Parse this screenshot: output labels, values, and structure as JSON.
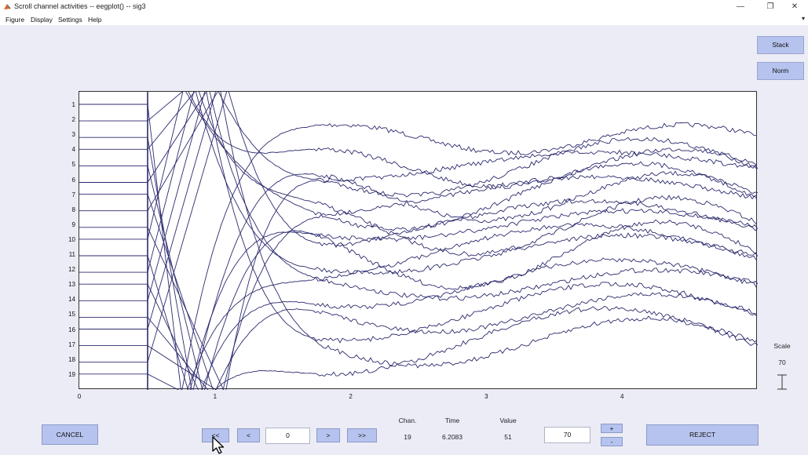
{
  "window": {
    "title": "Scroll channel activities -- eegplot() -- sig3",
    "controls": [
      "—",
      "❐",
      "✕"
    ]
  },
  "menu": [
    "Figure",
    "Display",
    "Settings",
    "Help"
  ],
  "side_buttons": {
    "stack": "Stack",
    "norm": "Norm"
  },
  "plot": {
    "channel_labels": [
      "1",
      "2",
      "3",
      "4",
      "5",
      "6",
      "7",
      "8",
      "9",
      "10",
      "11",
      "12",
      "13",
      "14",
      "15",
      "16",
      "17",
      "18",
      "19"
    ],
    "time_ticks": [
      "0",
      "1",
      "2",
      "3",
      "4"
    ],
    "line_color": "#2b2a6e"
  },
  "scale": {
    "label": "Scale",
    "value": "70"
  },
  "controls": {
    "cancel": "CANCEL",
    "first": "<<",
    "prev": "<",
    "position_value": "0",
    "next": ">",
    "last": ">>",
    "scale_input_value": "70",
    "plus": "+",
    "minus": "-",
    "reject": "REJECT"
  },
  "info": {
    "chan_label": "Chan.",
    "chan_value": "19",
    "time_label": "Time",
    "time_value": "6.2083",
    "value_label": "Value",
    "value_value": "51"
  }
}
